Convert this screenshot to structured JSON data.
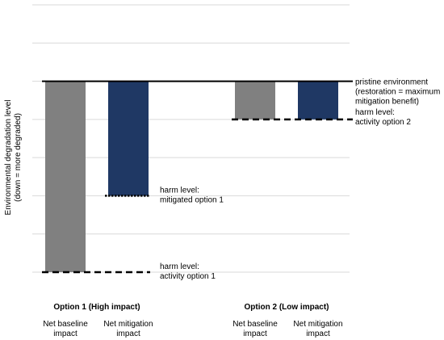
{
  "chart_data": {
    "type": "bar",
    "ylabel_lines": [
      "Environmental degradation level",
      "(down = more degraded)"
    ],
    "grid": true,
    "ylim": [
      -5,
      2
    ],
    "pristine_level": 0,
    "groups": [
      {
        "label": "Option 1 (High impact)",
        "bars": [
          {
            "category": "Net baseline impact",
            "category_lines": [
              "Net baseline",
              "impact"
            ],
            "value": -5,
            "color": "#808080"
          },
          {
            "category": "Net mitigation impact",
            "category_lines": [
              "Net mitigation",
              "impact"
            ],
            "value": -3,
            "color": "#1f3864"
          }
        ]
      },
      {
        "label": "Option 2 (Low impact)",
        "bars": [
          {
            "category": "Net baseline impact",
            "category_lines": [
              "Net baseline",
              "impact"
            ],
            "value": -1,
            "color": "#808080"
          },
          {
            "category": "Net mitigation impact",
            "category_lines": [
              "Net mitigation",
              "impact"
            ],
            "value": -1,
            "color": "#1f3864"
          }
        ]
      }
    ],
    "reference_lines": [
      {
        "name": "pristine-line",
        "value": 0,
        "style": "solid",
        "from_bar": 0,
        "to_bar": 3,
        "label_lines": [
          "pristine environment",
          "(restoration = maximum",
          "mitigation benefit)"
        ]
      },
      {
        "name": "harm-activity-option-2",
        "value": -1,
        "style": "dashed",
        "from_bar": 2,
        "to_bar": 3,
        "label_lines": [
          "harm level:",
          "activity option 2"
        ]
      },
      {
        "name": "harm-mitigated-option-1",
        "value": -3,
        "style": "dotted",
        "from_bar": 1,
        "to_bar": 1,
        "label_lines": [
          "harm level:",
          "mitigated option 1"
        ]
      },
      {
        "name": "harm-activity-option-1",
        "value": -5,
        "style": "dashed",
        "from_bar": 0,
        "to_bar": 1,
        "label_lines": [
          "harm level:",
          "activity option 1"
        ]
      }
    ]
  }
}
